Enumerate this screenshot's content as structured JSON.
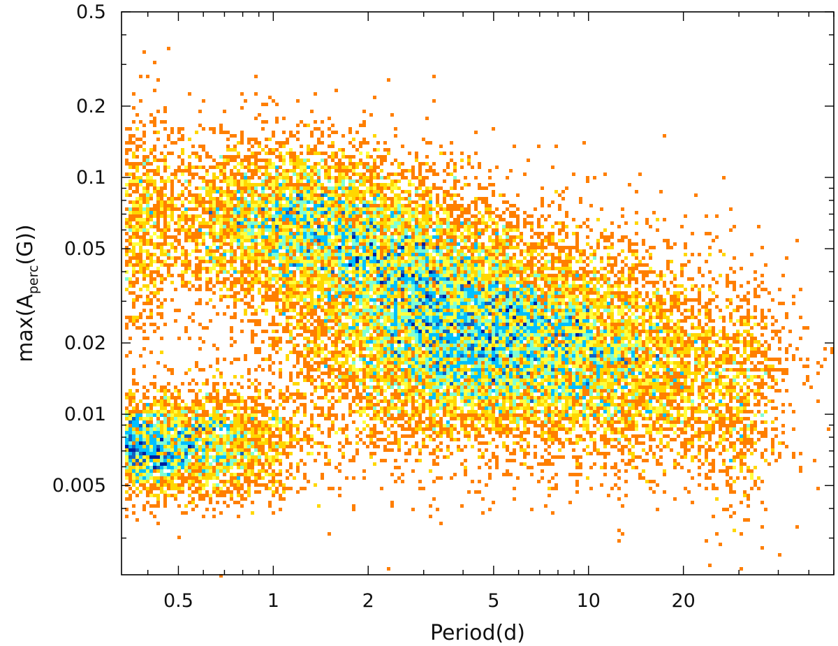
{
  "chart_data": {
    "type": "scatter",
    "title": "",
    "xlabel": "Period(d)",
    "ylabel": {
      "prefix": "max(A",
      "subscript": "perc",
      "suffix": "(G))"
    },
    "x_scale": "log",
    "y_scale": "log",
    "xlim": [
      0.33,
      60
    ],
    "ylim": [
      0.0021,
      0.5
    ],
    "x_ticks": [
      {
        "value": 0.5,
        "label": "0.5"
      },
      {
        "value": 1,
        "label": "1"
      },
      {
        "value": 2,
        "label": "2"
      },
      {
        "value": 5,
        "label": "5"
      },
      {
        "value": 10,
        "label": "10"
      },
      {
        "value": 20,
        "label": "20"
      }
    ],
    "y_ticks": [
      {
        "value": 0.005,
        "label": "0.005"
      },
      {
        "value": 0.01,
        "label": "0.01"
      },
      {
        "value": 0.02,
        "label": "0.02"
      },
      {
        "value": 0.05,
        "label": "0.05"
      },
      {
        "value": 0.1,
        "label": "0.1"
      },
      {
        "value": 0.2,
        "label": "0.2"
      },
      {
        "value": 0.5,
        "label": "0.5"
      }
    ],
    "grid": false,
    "legend": "none",
    "color_scale": [
      "#8b0000",
      "#cc2200",
      "#ff7f00",
      "#ffd700",
      "#ffff40",
      "#7fffd4",
      "#00bfff",
      "#1560bd",
      "#00209f"
    ],
    "density_clusters": [
      {
        "x_center": 0.36,
        "y_center": 0.0072,
        "x_spread_dex": 0.1,
        "y_spread_dex": 0.09,
        "relative_density": 1.0
      },
      {
        "x_center": 0.6,
        "y_center": 0.0075,
        "x_spread_dex": 0.17,
        "y_spread_dex": 0.12,
        "relative_density": 0.7
      },
      {
        "x_center": 1.1,
        "y_center": 0.065,
        "x_spread_dex": 0.22,
        "y_spread_dex": 0.17,
        "relative_density": 0.7
      },
      {
        "x_center": 0.38,
        "y_center": 0.06,
        "x_spread_dex": 0.06,
        "y_spread_dex": 0.25,
        "relative_density": 0.3
      },
      {
        "x_center": 4.8,
        "y_center": 0.02,
        "x_spread_dex": 0.3,
        "y_spread_dex": 0.22,
        "relative_density": 1.0
      },
      {
        "x_center": 2.5,
        "y_center": 0.045,
        "x_spread_dex": 0.2,
        "y_spread_dex": 0.18,
        "relative_density": 0.5
      },
      {
        "x_center": 16,
        "y_center": 0.014,
        "x_spread_dex": 0.2,
        "y_spread_dex": 0.2,
        "relative_density": 0.3
      },
      {
        "x_center": 30,
        "y_center": 0.012,
        "x_spread_dex": 0.06,
        "y_spread_dex": 0.25,
        "relative_density": 0.2
      }
    ],
    "sparse_points": [
      {
        "x": 0.89,
        "y": 0.27
      },
      {
        "x": 3.2,
        "y": 0.27
      },
      {
        "x": 0.42,
        "y": 0.23
      },
      {
        "x": 1.35,
        "y": 0.225
      },
      {
        "x": 17.5,
        "y": 0.15
      },
      {
        "x": 14.5,
        "y": 0.102
      },
      {
        "x": 2.35,
        "y": 0.0022
      },
      {
        "x": 0.68,
        "y": 0.0021
      },
      {
        "x": 54,
        "y": 0.015
      },
      {
        "x": 52,
        "y": 0.0064
      },
      {
        "x": 55,
        "y": 0.016
      },
      {
        "x": 47,
        "y": 0.0068
      }
    ]
  }
}
